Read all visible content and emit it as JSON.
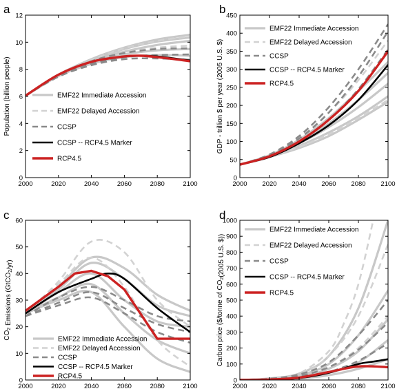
{
  "colors": {
    "emf22_immediate": "#c8c8c8",
    "emf22_delayed": "#d2d2d2",
    "ccsp": "#8a8a8a",
    "marker": "#000000",
    "rcp45": "#cc2222",
    "frame": "#000000"
  },
  "legend": {
    "imm": "EMF22 Immediate Accession",
    "del": "EMF22 Delayed Accession",
    "ccsp": "CCSP",
    "marker": "CCSP -- RCP4.5 Marker",
    "rcp": "RCP4.5"
  },
  "chart_data": [
    {
      "panel": "a",
      "type": "line",
      "ylabel": "Population (billion people)",
      "xlim": [
        2000,
        2100
      ],
      "ylim": [
        0,
        12
      ],
      "xticks": [
        2000,
        2020,
        2040,
        2060,
        2080,
        2100
      ],
      "yticks": [
        0,
        2,
        4,
        6,
        8,
        10,
        12
      ],
      "legend_position": "bottom-center",
      "series": [
        {
          "group": "imm",
          "x": [
            2000,
            2020,
            2040,
            2060,
            2080,
            2100
          ],
          "y": [
            6.05,
            7.6,
            8.75,
            9.6,
            10.2,
            10.55
          ]
        },
        {
          "group": "imm",
          "x": [
            2000,
            2020,
            2040,
            2060,
            2080,
            2100
          ],
          "y": [
            6.05,
            7.6,
            8.7,
            9.5,
            10.05,
            10.35
          ]
        },
        {
          "group": "imm",
          "x": [
            2000,
            2020,
            2040,
            2060,
            2080,
            2100
          ],
          "y": [
            6.05,
            7.55,
            8.6,
            9.3,
            9.8,
            10.1
          ]
        },
        {
          "group": "imm",
          "x": [
            2000,
            2020,
            2040,
            2060,
            2080,
            2100
          ],
          "y": [
            6.05,
            7.5,
            8.5,
            9.1,
            9.4,
            9.5
          ]
        },
        {
          "group": "imm",
          "x": [
            2000,
            2020,
            2040,
            2060,
            2080,
            2100
          ],
          "y": [
            6.05,
            7.5,
            8.4,
            8.9,
            9.05,
            9.0
          ]
        },
        {
          "group": "del",
          "x": [
            2000,
            2020,
            2040,
            2060,
            2080,
            2100
          ],
          "y": [
            6.05,
            7.6,
            8.7,
            9.55,
            10.1,
            10.45
          ]
        },
        {
          "group": "del",
          "x": [
            2000,
            2020,
            2040,
            2060,
            2080,
            2100
          ],
          "y": [
            6.05,
            7.55,
            8.55,
            9.2,
            9.6,
            9.75
          ]
        },
        {
          "group": "ccsp",
          "x": [
            2000,
            2020,
            2040,
            2060,
            2080,
            2100
          ],
          "y": [
            6.05,
            7.55,
            8.6,
            9.2,
            9.5,
            9.55
          ]
        },
        {
          "group": "ccsp",
          "x": [
            2000,
            2020,
            2040,
            2060,
            2080,
            2100
          ],
          "y": [
            6.05,
            7.5,
            8.4,
            8.9,
            9.05,
            9.1
          ]
        },
        {
          "group": "ccsp",
          "x": [
            2000,
            2020,
            2040,
            2060,
            2080,
            2100
          ],
          "y": [
            6.05,
            7.45,
            8.3,
            8.75,
            8.8,
            8.7
          ]
        },
        {
          "group": "marker",
          "x": [
            2000,
            2020,
            2040,
            2060,
            2070,
            2080,
            2100
          ],
          "y": [
            6.05,
            7.6,
            8.55,
            8.95,
            9.0,
            8.95,
            8.65
          ]
        },
        {
          "group": "rcp",
          "x": [
            2000,
            2020,
            2040,
            2060,
            2070,
            2080,
            2100
          ],
          "y": [
            6.05,
            7.6,
            8.55,
            8.95,
            9.0,
            8.9,
            8.6
          ]
        }
      ]
    },
    {
      "panel": "b",
      "type": "line",
      "ylabel": "GDP - trillion $ per year (2005 U.S. $)",
      "xlim": [
        2000,
        2100
      ],
      "ylim": [
        0,
        450
      ],
      "xticks": [
        2000,
        2020,
        2040,
        2060,
        2080,
        2100
      ],
      "yticks": [
        0,
        50,
        100,
        150,
        200,
        250,
        300,
        350,
        400,
        450
      ],
      "legend_position": "top-left",
      "series": [
        {
          "group": "imm",
          "x": [
            2000,
            2020,
            2040,
            2060,
            2080,
            2100
          ],
          "y": [
            36,
            62,
            105,
            165,
            240,
            320
          ]
        },
        {
          "group": "imm",
          "x": [
            2000,
            2020,
            2040,
            2060,
            2080,
            2100
          ],
          "y": [
            36,
            60,
            95,
            140,
            195,
            260
          ]
        },
        {
          "group": "imm",
          "x": [
            2000,
            2020,
            2040,
            2060,
            2080,
            2100
          ],
          "y": [
            36,
            58,
            88,
            125,
            170,
            225
          ]
        },
        {
          "group": "imm",
          "x": [
            2000,
            2020,
            2040,
            2060,
            2080,
            2100
          ],
          "y": [
            36,
            57,
            82,
            115,
            160,
            210
          ]
        },
        {
          "group": "imm",
          "x": [
            2000,
            2020,
            2040,
            2060,
            2080,
            2100
          ],
          "y": [
            36,
            60,
            98,
            150,
            215,
            290
          ]
        },
        {
          "group": "del",
          "x": [
            2000,
            2020,
            2040,
            2060,
            2080,
            2100
          ],
          "y": [
            36,
            63,
            110,
            180,
            270,
            380
          ]
        },
        {
          "group": "del",
          "x": [
            2000,
            2020,
            2040,
            2060,
            2080,
            2100
          ],
          "y": [
            36,
            58,
            85,
            120,
            165,
            215
          ]
        },
        {
          "group": "ccsp",
          "x": [
            2000,
            2020,
            2040,
            2060,
            2080,
            2100
          ],
          "y": [
            36,
            64,
            115,
            195,
            300,
            425
          ]
        },
        {
          "group": "ccsp",
          "x": [
            2000,
            2020,
            2040,
            2060,
            2080,
            2100
          ],
          "y": [
            36,
            62,
            108,
            180,
            280,
            405
          ]
        },
        {
          "group": "ccsp",
          "x": [
            2000,
            2020,
            2040,
            2060,
            2080,
            2100
          ],
          "y": [
            36,
            60,
            100,
            160,
            245,
            355
          ]
        },
        {
          "group": "marker",
          "x": [
            2000,
            2020,
            2040,
            2060,
            2080,
            2100
          ],
          "y": [
            36,
            57,
            95,
            145,
            215,
            312
          ]
        },
        {
          "group": "rcp",
          "x": [
            2000,
            2020,
            2040,
            2060,
            2080,
            2100
          ],
          "y": [
            36,
            59,
            100,
            160,
            240,
            350
          ]
        }
      ]
    },
    {
      "panel": "c",
      "type": "line",
      "ylabel": "CO₂ Emissions (GtCO₂/yr)",
      "xlim": [
        2000,
        2100
      ],
      "ylim": [
        0,
        60
      ],
      "xticks": [
        2000,
        2020,
        2040,
        2060,
        2080,
        2100
      ],
      "yticks": [
        0,
        10,
        20,
        30,
        40,
        50,
        60
      ],
      "legend_position": "bottom-left",
      "series": [
        {
          "group": "imm",
          "x": [
            2000,
            2020,
            2040,
            2060,
            2080,
            2100
          ],
          "y": [
            25,
            34,
            44,
            38,
            28,
            24
          ]
        },
        {
          "group": "imm",
          "x": [
            2000,
            2020,
            2040,
            2060,
            2080,
            2100
          ],
          "y": [
            25,
            33,
            40,
            30,
            22,
            20
          ]
        },
        {
          "group": "imm",
          "x": [
            2000,
            2020,
            2040,
            2060,
            2080,
            2100
          ],
          "y": [
            25,
            31,
            36,
            25,
            15,
            10
          ]
        },
        {
          "group": "imm",
          "x": [
            2000,
            2020,
            2040,
            2060,
            2080,
            2100
          ],
          "y": [
            25,
            30,
            33,
            20,
            8,
            3
          ]
        },
        {
          "group": "imm",
          "x": [
            2000,
            2020,
            2040,
            2060,
            2080,
            2100
          ],
          "y": [
            25,
            35,
            46,
            42,
            32,
            26
          ]
        },
        {
          "group": "del",
          "x": [
            2000,
            2020,
            2040,
            2060,
            2080,
            2100
          ],
          "y": [
            25,
            37,
            52,
            48,
            30,
            20
          ]
        },
        {
          "group": "del",
          "x": [
            2000,
            2020,
            2040,
            2060,
            2080,
            2100
          ],
          "y": [
            25,
            36,
            46,
            35,
            15,
            5
          ]
        },
        {
          "group": "ccsp",
          "x": [
            2000,
            2020,
            2040,
            2060,
            2080,
            2100
          ],
          "y": [
            24,
            31,
            35,
            30,
            24,
            22
          ]
        },
        {
          "group": "ccsp",
          "x": [
            2000,
            2020,
            2040,
            2060,
            2080,
            2100
          ],
          "y": [
            24,
            29,
            33,
            27,
            21,
            18
          ]
        },
        {
          "group": "ccsp",
          "x": [
            2000,
            2020,
            2040,
            2060,
            2080,
            2100
          ],
          "y": [
            24,
            28,
            31,
            25,
            18,
            14
          ]
        },
        {
          "group": "marker",
          "x": [
            2000,
            2020,
            2040,
            2050,
            2060,
            2080,
            2100
          ],
          "y": [
            25,
            33,
            38,
            40,
            38,
            27,
            18
          ]
        },
        {
          "group": "rcp",
          "x": [
            2000,
            2020,
            2030,
            2040,
            2050,
            2060,
            2080,
            2100
          ],
          "y": [
            26,
            35,
            40,
            41,
            39,
            34,
            15.5,
            15.5
          ]
        }
      ]
    },
    {
      "panel": "d",
      "type": "line",
      "ylabel": "Carbon price ($/tonne of CO₂(2005 U.S. $))",
      "xlim": [
        2000,
        2100
      ],
      "ylim": [
        0,
        1000
      ],
      "xticks": [
        2000,
        2020,
        2040,
        2060,
        2080,
        2100
      ],
      "yticks": [
        0,
        100,
        200,
        300,
        400,
        500,
        600,
        700,
        800,
        900,
        1000
      ],
      "legend_position": "top-left",
      "series": [
        {
          "group": "imm",
          "x": [
            2000,
            2020,
            2040,
            2060,
            2080,
            2100
          ],
          "y": [
            0,
            10,
            40,
            150,
            450,
            1000
          ]
        },
        {
          "group": "imm",
          "x": [
            2000,
            2020,
            2040,
            2060,
            2080,
            2100
          ],
          "y": [
            0,
            8,
            30,
            100,
            280,
            560
          ]
        },
        {
          "group": "imm",
          "x": [
            2000,
            2020,
            2040,
            2060,
            2080,
            2100
          ],
          "y": [
            0,
            6,
            22,
            70,
            180,
            380
          ]
        },
        {
          "group": "imm",
          "x": [
            2000,
            2020,
            2040,
            2060,
            2080,
            2100
          ],
          "y": [
            0,
            5,
            15,
            45,
            110,
            250
          ]
        },
        {
          "group": "imm",
          "x": [
            2000,
            2020,
            2040,
            2060,
            2080,
            2100
          ],
          "y": [
            0,
            3,
            10,
            30,
            70,
            130
          ]
        },
        {
          "group": "del",
          "x": [
            2000,
            2020,
            2040,
            2060,
            2070,
            2080,
            2090
          ],
          "y": [
            0,
            0,
            40,
            180,
            350,
            600,
            1000
          ]
        },
        {
          "group": "del",
          "x": [
            2000,
            2020,
            2040,
            2060,
            2080,
            2100
          ],
          "y": [
            0,
            0,
            30,
            150,
            400,
            850
          ]
        },
        {
          "group": "del",
          "x": [
            2000,
            2020,
            2040,
            2060,
            2080,
            2100
          ],
          "y": [
            0,
            0,
            20,
            80,
            200,
            400
          ]
        },
        {
          "group": "ccsp",
          "x": [
            2000,
            2020,
            2040,
            2060,
            2080,
            2100
          ],
          "y": [
            0,
            8,
            35,
            110,
            280,
            500
          ]
        },
        {
          "group": "ccsp",
          "x": [
            2000,
            2020,
            2040,
            2060,
            2080,
            2100
          ],
          "y": [
            0,
            6,
            25,
            80,
            190,
            360
          ]
        },
        {
          "group": "ccsp",
          "x": [
            2000,
            2020,
            2040,
            2060,
            2080,
            2100
          ],
          "y": [
            0,
            4,
            15,
            50,
            120,
            230
          ]
        },
        {
          "group": "marker",
          "x": [
            2000,
            2020,
            2040,
            2060,
            2080,
            2090,
            2100
          ],
          "y": [
            0,
            2,
            12,
            45,
            100,
            115,
            130
          ]
        },
        {
          "group": "rcp",
          "x": [
            2000,
            2020,
            2040,
            2060,
            2080,
            2100
          ],
          "y": [
            0,
            3,
            15,
            50,
            85,
            80
          ]
        }
      ]
    }
  ]
}
